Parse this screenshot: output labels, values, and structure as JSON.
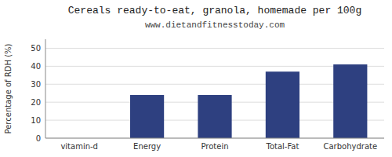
{
  "chart_data": {
    "type": "bar",
    "title": "Cereals ready-to-eat, granola, homemade per 100g",
    "subtitle": "www.dietandfitnesstoday.com",
    "categories": [
      "vitamin-d",
      "Energy",
      "Protein",
      "Total-Fat",
      "Carbohydrate"
    ],
    "values": [
      0,
      24,
      24,
      37,
      41
    ],
    "color": "#2e4080",
    "ylabel": "Percentage of RDH (%)",
    "ylim": [
      0,
      55
    ],
    "yticks": [
      0,
      10,
      20,
      30,
      40,
      50
    ],
    "grid": true
  }
}
